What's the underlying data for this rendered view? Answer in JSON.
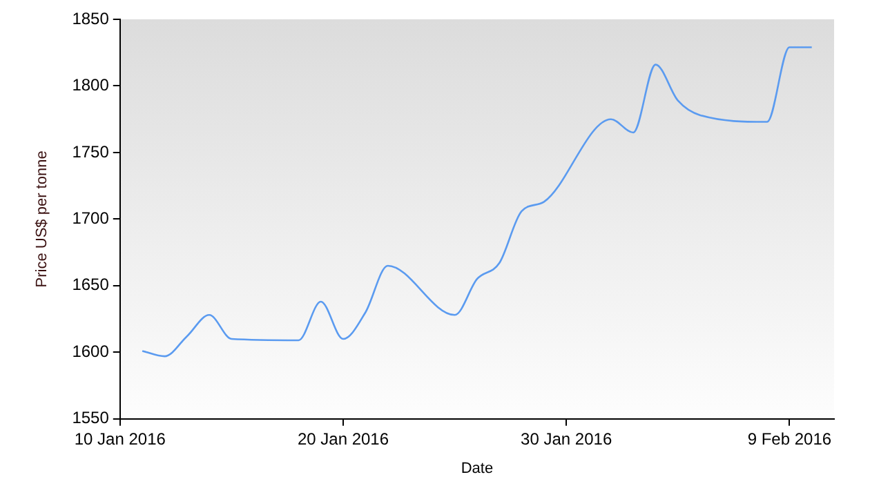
{
  "chart_data": {
    "type": "line",
    "xlabel": "Date",
    "ylabel": "Price US$ per tonne",
    "x": [
      "2016-01-11",
      "2016-01-12",
      "2016-01-13",
      "2016-01-14",
      "2016-01-15",
      "2016-01-18",
      "2016-01-19",
      "2016-01-20",
      "2016-01-21",
      "2016-01-22",
      "2016-01-25",
      "2016-01-26",
      "2016-01-27",
      "2016-01-28",
      "2016-01-29",
      "2016-02-01",
      "2016-02-02",
      "2016-02-03",
      "2016-02-04",
      "2016-02-05",
      "2016-02-08",
      "2016-02-09",
      "2016-02-10"
    ],
    "series": [
      {
        "color": "#5b9bf0",
        "values": [
          1601,
          1597,
          1612,
          1628,
          1610,
          1609,
          1638,
          1610,
          1630,
          1665,
          1628,
          1655,
          1667,
          1706,
          1713,
          1775,
          1765,
          1816,
          1789,
          1778,
          1773,
          1829,
          1829
        ]
      }
    ],
    "xlim": [
      "2016-01-10",
      "2016-02-11"
    ],
    "ylim": [
      1550,
      1850
    ],
    "xticks": [
      {
        "value": "2016-01-10",
        "label": "10 Jan 2016"
      },
      {
        "value": "2016-01-20",
        "label": "20 Jan 2016"
      },
      {
        "value": "2016-01-30",
        "label": "30 Jan 2016"
      },
      {
        "value": "2016-02-09",
        "label": "9 Feb 2016"
      }
    ],
    "yticks": [
      1550,
      1600,
      1650,
      1700,
      1750,
      1800,
      1850
    ],
    "grid": false,
    "legend": false,
    "marker": "none",
    "line_style": "solid"
  }
}
